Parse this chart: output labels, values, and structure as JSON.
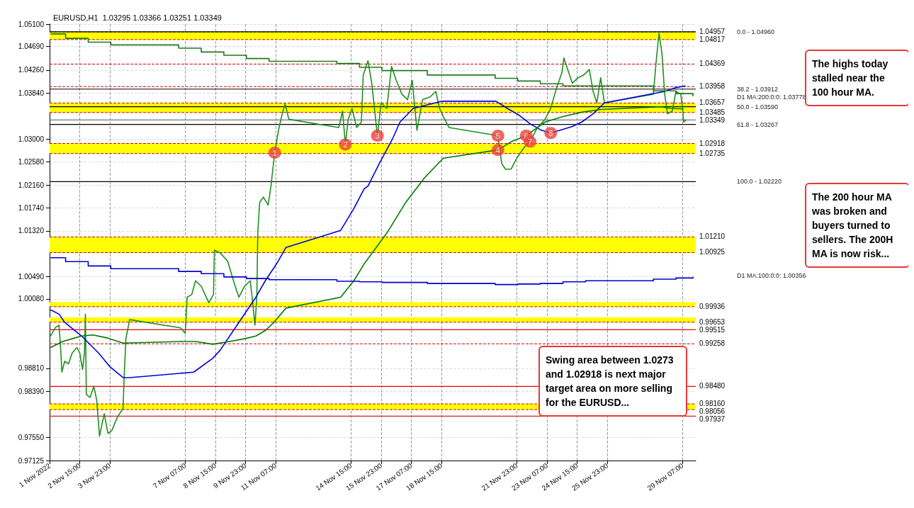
{
  "chart_data": {
    "type": "line",
    "title": "EURUSD,H1  1.03295 1.03366 1.03251 1.03349",
    "xlim": [
      "2022-11-01T07:00",
      "2022-11-29T21:00"
    ],
    "ylim": [
      0.97125,
      1.051
    ],
    "xticks": [
      {
        "value": "2022-11-01T07:00",
        "label": "1 Nov 2022"
      },
      {
        "value": "2022-11-02T15:00",
        "label": "2 Nov 15:00"
      },
      {
        "value": "2022-11-03T23:00",
        "label": "3 Nov 23:00"
      },
      {
        "value": "2022-11-07T07:00",
        "label": "7 Nov 07:00"
      },
      {
        "value": "2022-11-08T15:00",
        "label": "8 Nov 15:00"
      },
      {
        "value": "2022-11-09T23:00",
        "label": "9 Nov 23:00"
      },
      {
        "value": "2022-11-11T07:00",
        "label": "11 Nov 07:00"
      },
      {
        "value": "2022-11-14T15:00",
        "label": "14 Nov 15:00"
      },
      {
        "value": "2022-11-15T23:00",
        "label": "15 Nov 23:00"
      },
      {
        "value": "2022-11-17T07:00",
        "label": "17 Nov 07:00"
      },
      {
        "value": "2022-11-18T15:00",
        "label": "18 Nov 15:00"
      },
      {
        "value": "2022-11-21T23:00",
        "label": "21 Nov 23:00"
      },
      {
        "value": "2022-11-23T07:00",
        "label": "23 Nov 07:00"
      },
      {
        "value": "2022-11-24T15:00",
        "label": "24 Nov 15:00"
      },
      {
        "value": "2022-11-25T23:00",
        "label": "25 Nov 23:00"
      },
      {
        "value": "2022-11-29T07:00",
        "label": "29 Nov 07:00"
      }
    ],
    "yticks": [
      {
        "value": 0.97125,
        "label": "0.97125"
      },
      {
        "value": 0.9755,
        "label": "0.97550"
      },
      {
        "value": 0.9839,
        "label": "0.98390"
      },
      {
        "value": 0.9881,
        "label": "0.98810"
      },
      {
        "value": 1.0008,
        "label": "1.00080"
      },
      {
        "value": 1.0049,
        "label": "1.00490"
      },
      {
        "value": 1.0132,
        "label": "1.01320"
      },
      {
        "value": 1.0174,
        "label": "1.01740"
      },
      {
        "value": 1.0216,
        "label": "1.02160"
      },
      {
        "value": 1.0258,
        "label": "1.02580"
      },
      {
        "value": 1.03,
        "label": "1.03000"
      },
      {
        "value": 1.0384,
        "label": "1.03840"
      },
      {
        "value": 1.0426,
        "label": "1.04260"
      },
      {
        "value": 1.0469,
        "label": "1.04690"
      },
      {
        "value": 1.051,
        "label": "1.05100"
      }
    ],
    "grid": true,
    "marker": "none",
    "series": [
      {
        "color": "#1f8f1f",
        "x": [
          "2022-11-01T08:00",
          "2022-11-01T13:00",
          "2022-11-01T17:00",
          "2022-11-01T19:00",
          "2022-11-01T20:00",
          "2022-11-01T23:00",
          "2022-11-02T03:00",
          "2022-11-02T07:00",
          "2022-11-02T12:00",
          "2022-11-02T15:00",
          "2022-11-02T18:00",
          "2022-11-02T20:00",
          "2022-11-02T21:00",
          "2022-11-02T22:00",
          "2022-11-03T02:00",
          "2022-11-03T06:00",
          "2022-11-03T09:00",
          "2022-11-03T12:00",
          "2022-11-03T17:00",
          "2022-11-03T21:00",
          "2022-11-04T01:00",
          "2022-11-04T07:00",
          "2022-11-04T13:00",
          "2022-11-04T14:00",
          "2022-11-04T16:00",
          "2022-11-04T20:00",
          "2022-11-07T02:00",
          "2022-11-07T07:00",
          "2022-11-07T09:00",
          "2022-11-07T14:00",
          "2022-11-07T18:00",
          "2022-11-08T00:00",
          "2022-11-08T08:00",
          "2022-11-08T13:00",
          "2022-11-08T14:00",
          "2022-11-08T20:00",
          "2022-11-09T04:00",
          "2022-11-09T12:00",
          "2022-11-09T16:00",
          "2022-11-09T22:00",
          "2022-11-10T04:00",
          "2022-11-10T06:00",
          "2022-11-10T09:00",
          "2022-11-10T11:00",
          "2022-11-10T12:00",
          "2022-11-10T14:00",
          "2022-11-10T18:00",
          "2022-11-10T23:00",
          "2022-11-11T02:00",
          "2022-11-11T06:00",
          "2022-11-11T10:00",
          "2022-11-11T14:00",
          "2022-11-11T17:00",
          "2022-11-11T21:00",
          "2022-11-14T02:00",
          "2022-11-14T06:00",
          "2022-11-14T09:00",
          "2022-11-14T12:00",
          "2022-11-14T16:00",
          "2022-11-14T21:00",
          "2022-11-15T02:00",
          "2022-11-15T04:00",
          "2022-11-15T09:00",
          "2022-11-15T13:00",
          "2022-11-15T19:00",
          "2022-11-15T23:00",
          "2022-11-16T05:00",
          "2022-11-16T10:00",
          "2022-11-16T15:00",
          "2022-11-16T21:00",
          "2022-11-17T03:00",
          "2022-11-17T08:00",
          "2022-11-17T13:00",
          "2022-11-17T19:00",
          "2022-11-18T03:00",
          "2022-11-18T09:00",
          "2022-11-18T13:00",
          "2022-11-18T17:00",
          "2022-11-18T23:00",
          "2022-11-21T03:00",
          "2022-11-21T07:00",
          "2022-11-21T11:00",
          "2022-11-21T17:00",
          "2022-11-21T23:00",
          "2022-11-22T07:00",
          "2022-11-22T13:00",
          "2022-11-22T21:00",
          "2022-11-23T05:00",
          "2022-11-23T11:00",
          "2022-11-23T17:00",
          "2022-11-23T23:00",
          "2022-11-24T01:00",
          "2022-11-24T06:00",
          "2022-11-24T10:00",
          "2022-11-24T16:00",
          "2022-11-24T22:00",
          "2022-11-25T04:00",
          "2022-11-25T08:00",
          "2022-11-25T12:00",
          "2022-11-25T16:00",
          "2022-11-25T20:00",
          "2022-11-28T00:00",
          "2022-11-28T03:00",
          "2022-11-28T06:00",
          "2022-11-28T09:00",
          "2022-11-28T12:00",
          "2022-11-28T15:00",
          "2022-11-28T20:00",
          "2022-11-29T00:00",
          "2022-11-29T05:00",
          "2022-11-29T07:00",
          "2022-11-29T08:00",
          "2022-11-29T11:00"
        ],
        "values": [
          0.994,
          0.9955,
          0.996,
          0.9909,
          0.9874,
          0.9894,
          0.9889,
          0.9909,
          0.9919,
          0.9909,
          0.9879,
          0.9909,
          0.998,
          0.9833,
          0.9828,
          0.9848,
          0.9823,
          0.9757,
          0.9798,
          0.9762,
          0.9767,
          0.9792,
          0.9808,
          0.9858,
          0.9935,
          0.997,
          0.9955,
          0.9945,
          1.0011,
          1.0016,
          1.0041,
          1.0031,
          1.0001,
          1.0016,
          1.0097,
          1.0092,
          1.0077,
          1.0031,
          1.0011,
          1.0031,
          1.0041,
          1.0011,
          0.996,
          1.0011,
          1.0128,
          1.0184,
          1.0194,
          1.0179,
          1.0214,
          1.0275,
          1.0316,
          1.0346,
          1.0364,
          1.0336,
          1.0321,
          1.0351,
          1.029,
          1.0336,
          1.0356,
          1.0321,
          1.0331,
          1.0417,
          1.0443,
          1.0402,
          1.0306,
          1.0366,
          1.0356,
          1.0433,
          1.0407,
          1.0382,
          1.0372,
          1.0407,
          1.0316,
          1.0372,
          1.0377,
          1.0387,
          1.0356,
          1.0341,
          1.0321,
          1.0306,
          1.0255,
          1.0245,
          1.0245,
          1.0265,
          1.0285,
          1.0295,
          1.0321,
          1.0336,
          1.0356,
          1.0392,
          1.0422,
          1.0448,
          1.0422,
          1.0402,
          1.0412,
          1.0417,
          1.0427,
          1.0387,
          1.0366,
          1.0412,
          1.0366,
          1.0382,
          1.0443,
          1.0493,
          1.0458,
          1.0382,
          1.0346,
          1.0351,
          1.0387,
          1.0382,
          1.0356,
          1.0331,
          1.0335
        ]
      },
      {
        "color": "#0000dd",
        "x": [
          "2022-11-01T08:00",
          "2022-11-01T17:00",
          "2022-11-01T23:00",
          "2022-11-02T17:00",
          "2022-11-03T11:00",
          "2022-11-03T23:00",
          "2022-11-04T13:00",
          "2022-11-04T20:00",
          "2022-11-07T16:00",
          "2022-11-08T12:00",
          "2022-11-08T20:00",
          "2022-11-09T16:00",
          "2022-11-10T10:00",
          "2022-11-10T20:00",
          "2022-11-11T08:00",
          "2022-11-11T18:00",
          "2022-11-14T04:00",
          "2022-11-14T18:00",
          "2022-11-15T05:00",
          "2022-11-15T09:00",
          "2022-11-15T21:00",
          "2022-11-16T11:00",
          "2022-11-16T19:00",
          "2022-11-17T09:00",
          "2022-11-17T21:00",
          "2022-11-18T15:00",
          "2022-11-21T01:00",
          "2022-11-21T13:00",
          "2022-11-22T01:00",
          "2022-11-22T13:00",
          "2022-11-23T01:00",
          "2022-11-23T11:00",
          "2022-11-23T21:00",
          "2022-11-24T10:00",
          "2022-11-24T20:00",
          "2022-11-25T08:00",
          "2022-11-25T20:00",
          "2022-11-28T12:00",
          "2022-11-29T00:00",
          "2022-11-29T10:00"
        ],
        "values": [
          0.9988,
          0.998,
          0.9965,
          0.994,
          0.9909,
          0.9884,
          0.9864,
          0.9864,
          0.9874,
          0.9899,
          0.9914,
          0.9965,
          1.0011,
          1.0041,
          1.0072,
          1.0102,
          1.0133,
          1.0173,
          1.0209,
          1.0214,
          1.0255,
          1.03,
          1.0331,
          1.0356,
          1.0361,
          1.0369,
          1.0369,
          1.0356,
          1.0344,
          1.0328,
          1.0316,
          1.0311,
          1.0316,
          1.0323,
          1.0331,
          1.0346,
          1.0366,
          1.0387,
          1.0394,
          1.0397
        ]
      },
      {
        "color": "#007a00",
        "x": [
          "2022-11-01T08:00",
          "2022-11-01T21:00",
          "2022-11-02T07:00",
          "2022-11-02T17:00",
          "2022-11-03T05:00",
          "2022-11-03T19:00",
          "2022-11-04T13:00",
          "2022-11-07T04:00",
          "2022-11-07T18:00",
          "2022-11-08T12:00",
          "2022-11-09T06:00",
          "2022-11-09T22:00",
          "2022-11-10T10:00",
          "2022-11-10T20:00",
          "2022-11-11T04:00",
          "2022-11-11T18:00",
          "2022-11-14T04:00",
          "2022-11-14T18:00",
          "2022-11-15T05:00",
          "2022-11-16T05:00",
          "2022-11-17T01:00",
          "2022-11-17T21:00",
          "2022-11-18T17:00",
          "2022-11-21T03:00",
          "2022-11-21T17:00",
          "2022-11-22T09:00",
          "2022-11-23T05:00",
          "2022-11-24T00:00",
          "2022-11-24T20:00",
          "2022-11-25T16:00",
          "2022-11-28T08:00",
          "2022-11-28T18:00",
          "2022-11-29T08:00"
        ],
        "values": [
          0.9919,
          0.993,
          0.9935,
          0.994,
          0.9942,
          0.9937,
          0.9927,
          0.993,
          0.993,
          0.9925,
          0.993,
          0.9935,
          0.994,
          0.995,
          0.9963,
          0.9991,
          1.0011,
          1.0041,
          1.0072,
          1.0128,
          1.0184,
          1.0229,
          1.0265,
          1.028,
          1.0295,
          1.0306,
          1.0331,
          1.0341,
          1.0349,
          1.0354,
          1.0359,
          1.0356,
          1.0355
        ]
      },
      {
        "type": "step",
        "color": "#1f7a1f",
        "x": [
          "2022-11-01T08:00",
          "2022-11-02T00:00",
          "2022-11-03T00:00",
          "2022-11-04T00:00",
          "2022-11-07T00:00",
          "2022-11-08T00:00",
          "2022-11-09T00:00",
          "2022-11-10T00:00",
          "2022-11-11T00:00",
          "2022-11-14T00:00",
          "2022-11-15T00:00",
          "2022-11-16T00:00",
          "2022-11-18T00:00",
          "2022-11-21T00:00",
          "2022-11-22T00:00",
          "2022-11-23T00:00",
          "2022-11-24T00:00",
          "2022-11-28T00:00",
          "2022-11-29T00:00",
          "2022-11-29T18:00"
        ],
        "values": [
          1.0492,
          1.0484,
          1.0477,
          1.0472,
          1.0466,
          1.0459,
          1.0453,
          1.0447,
          1.0442,
          1.0438,
          1.0431,
          1.0425,
          1.0417,
          1.0411,
          1.0406,
          1.0401,
          1.0397,
          1.0388,
          1.0383,
          1.0378
        ]
      },
      {
        "type": "step",
        "color": "#0000cc",
        "x": [
          "2022-11-01T08:00",
          "2022-11-02T00:00",
          "2022-11-03T00:00",
          "2022-11-04T00:00",
          "2022-11-07T00:00",
          "2022-11-08T00:00",
          "2022-11-09T00:00",
          "2022-11-10T00:00",
          "2022-11-11T00:00",
          "2022-11-14T00:00",
          "2022-11-15T00:00",
          "2022-11-16T00:00",
          "2022-11-18T00:00",
          "2022-11-21T00:00",
          "2022-11-22T00:00",
          "2022-11-23T00:00",
          "2022-11-24T00:00",
          "2022-11-25T00:00",
          "2022-11-28T00:00",
          "2022-11-29T00:00",
          "2022-11-29T18:00"
        ],
        "values": [
          1.0083,
          1.0076,
          1.0068,
          1.0063,
          1.0058,
          1.0054,
          1.0048,
          1.0045,
          1.0043,
          1.004,
          1.0039,
          1.0038,
          1.0036,
          1.0034,
          1.0035,
          1.0036,
          1.0039,
          1.0041,
          1.0044,
          1.0046,
          1.0048
        ]
      }
    ],
    "bands": [
      {
        "axis": "y",
        "from": 1.04817,
        "to": 1.04957,
        "color": "#ffff00"
      },
      {
        "axis": "y",
        "from": 1.03485,
        "to": 1.03657,
        "color": "#ffff00"
      },
      {
        "axis": "y",
        "from": 1.02735,
        "to": 1.02918,
        "color": "#ffff00"
      },
      {
        "axis": "y",
        "from": 1.00925,
        "to": 1.0121,
        "color": "#ffff00"
      },
      {
        "axis": "y",
        "from": 0.99936,
        "to": 1.0002,
        "color": "#ffff00"
      },
      {
        "axis": "y",
        "from": 0.99653,
        "to": 0.9974,
        "color": "#ffff00"
      },
      {
        "axis": "y",
        "from": 0.98056,
        "to": 0.9816,
        "color": "#ffff00"
      }
    ],
    "ref_lines": [
      {
        "axis": "y",
        "value": 1.04957,
        "label": "1.04957",
        "color": "#cc0000",
        "line_style": "dashed"
      },
      {
        "axis": "y",
        "value": 1.04817,
        "label": "1.04817",
        "color": "#cc0000",
        "line_style": "dashed"
      },
      {
        "axis": "y",
        "value": 1.04369,
        "label": "1.04369",
        "color": "#cc0000",
        "line_style": "dashed"
      },
      {
        "axis": "y",
        "value": 1.03958,
        "label": "1.03958",
        "color": "#cc0000",
        "line_style": "dashed"
      },
      {
        "axis": "y",
        "value": 1.03657,
        "label": "1.03657",
        "color": "#cc0000",
        "line_style": "dashed"
      },
      {
        "axis": "y",
        "value": 1.03485,
        "label": "1.03485",
        "color": "#cc0000",
        "line_style": "dashed"
      },
      {
        "axis": "y",
        "value": 1.03349,
        "label": "1.03349",
        "color": "#555555",
        "line_style": "solid"
      },
      {
        "axis": "y",
        "value": 1.02918,
        "label": "1.02918",
        "color": "#cc0000",
        "line_style": "dashed"
      },
      {
        "axis": "y",
        "value": 1.02735,
        "label": "1.02735",
        "color": "#cc0000",
        "line_style": "dashed"
      },
      {
        "axis": "y",
        "value": 1.0121,
        "label": "1.01210",
        "color": "#cc0000",
        "line_style": "dashed"
      },
      {
        "axis": "y",
        "value": 1.00925,
        "label": "1.00925",
        "color": "#cc0000",
        "line_style": "dashed"
      },
      {
        "axis": "y",
        "value": 0.99936,
        "label": "0.99936",
        "color": "#cc0000",
        "line_style": "dashed"
      },
      {
        "axis": "y",
        "value": 0.99653,
        "label": "0.99653",
        "color": "#cc0000",
        "line_style": "dashed"
      },
      {
        "axis": "y",
        "value": 0.99515,
        "label": "0.99515",
        "color": "#ee0000",
        "line_style": "solid"
      },
      {
        "axis": "y",
        "value": 0.99258,
        "label": "0.99258",
        "color": "#cc0000",
        "line_style": "dashed"
      },
      {
        "axis": "y",
        "value": 0.9848,
        "label": "0.98480",
        "color": "#ee0000",
        "line_style": "solid"
      },
      {
        "axis": "y",
        "value": 0.9816,
        "label": "0.98160",
        "color": "#cc0000",
        "line_style": "dashed"
      },
      {
        "axis": "y",
        "value": 0.98056,
        "label": "0.98056",
        "color": "#cc0000",
        "line_style": "dashed"
      },
      {
        "axis": "y",
        "value": 0.97937,
        "label": "0.97937",
        "color": "#cc2222",
        "line_style": "solid"
      },
      {
        "axis": "y",
        "value": 1.0496,
        "color": "#000000",
        "line_style": "solid"
      },
      {
        "axis": "y",
        "value": 1.03912,
        "color": "#000000",
        "line_style": "solid"
      },
      {
        "axis": "y",
        "value": 1.0359,
        "color": "#000000",
        "line_style": "solid"
      },
      {
        "axis": "y",
        "value": 1.03267,
        "color": "#000000",
        "line_style": "solid"
      },
      {
        "axis": "y",
        "value": 1.0222,
        "color": "#000000",
        "line_style": "solid"
      }
    ],
    "annotations": [
      "The highs today stalled near the 100 hour MA.",
      "Swing area between 1.0273 and 1.02918 is next major target area on more selling for the EURUSD...",
      "The 200 hour MA was broken and buyers turned to sellers. The 200H MA is now risk...",
      "0.0 - 1.04960",
      "38.2 - 1.03912",
      "50.0 - 1.03590",
      "61.8 - 1.03267",
      "100.0 - 1.02220",
      "D1 MA:200:0:0: 1.03778",
      "D1 MA:100:0:0: 1.00356",
      {
        "text": "1",
        "x": "2022-11-11T06:00",
        "y": 1.0275
      },
      {
        "text": "2",
        "x": "2022-11-14T09:00",
        "y": 1.029
      },
      {
        "text": "3",
        "x": "2022-11-15T19:00",
        "y": 1.0306
      },
      {
        "text": "4",
        "x": "2022-11-21T03:00",
        "y": 1.028
      },
      {
        "text": "5",
        "x": "2022-11-21T03:00",
        "y": 1.0306
      },
      {
        "text": "6",
        "x": "2022-11-22T09:00",
        "y": 1.0306
      },
      {
        "text": "7",
        "x": "2022-11-22T13:00",
        "y": 1.0295
      },
      {
        "text": "8",
        "x": "2022-11-23T11:00",
        "y": 1.0311
      }
    ]
  }
}
